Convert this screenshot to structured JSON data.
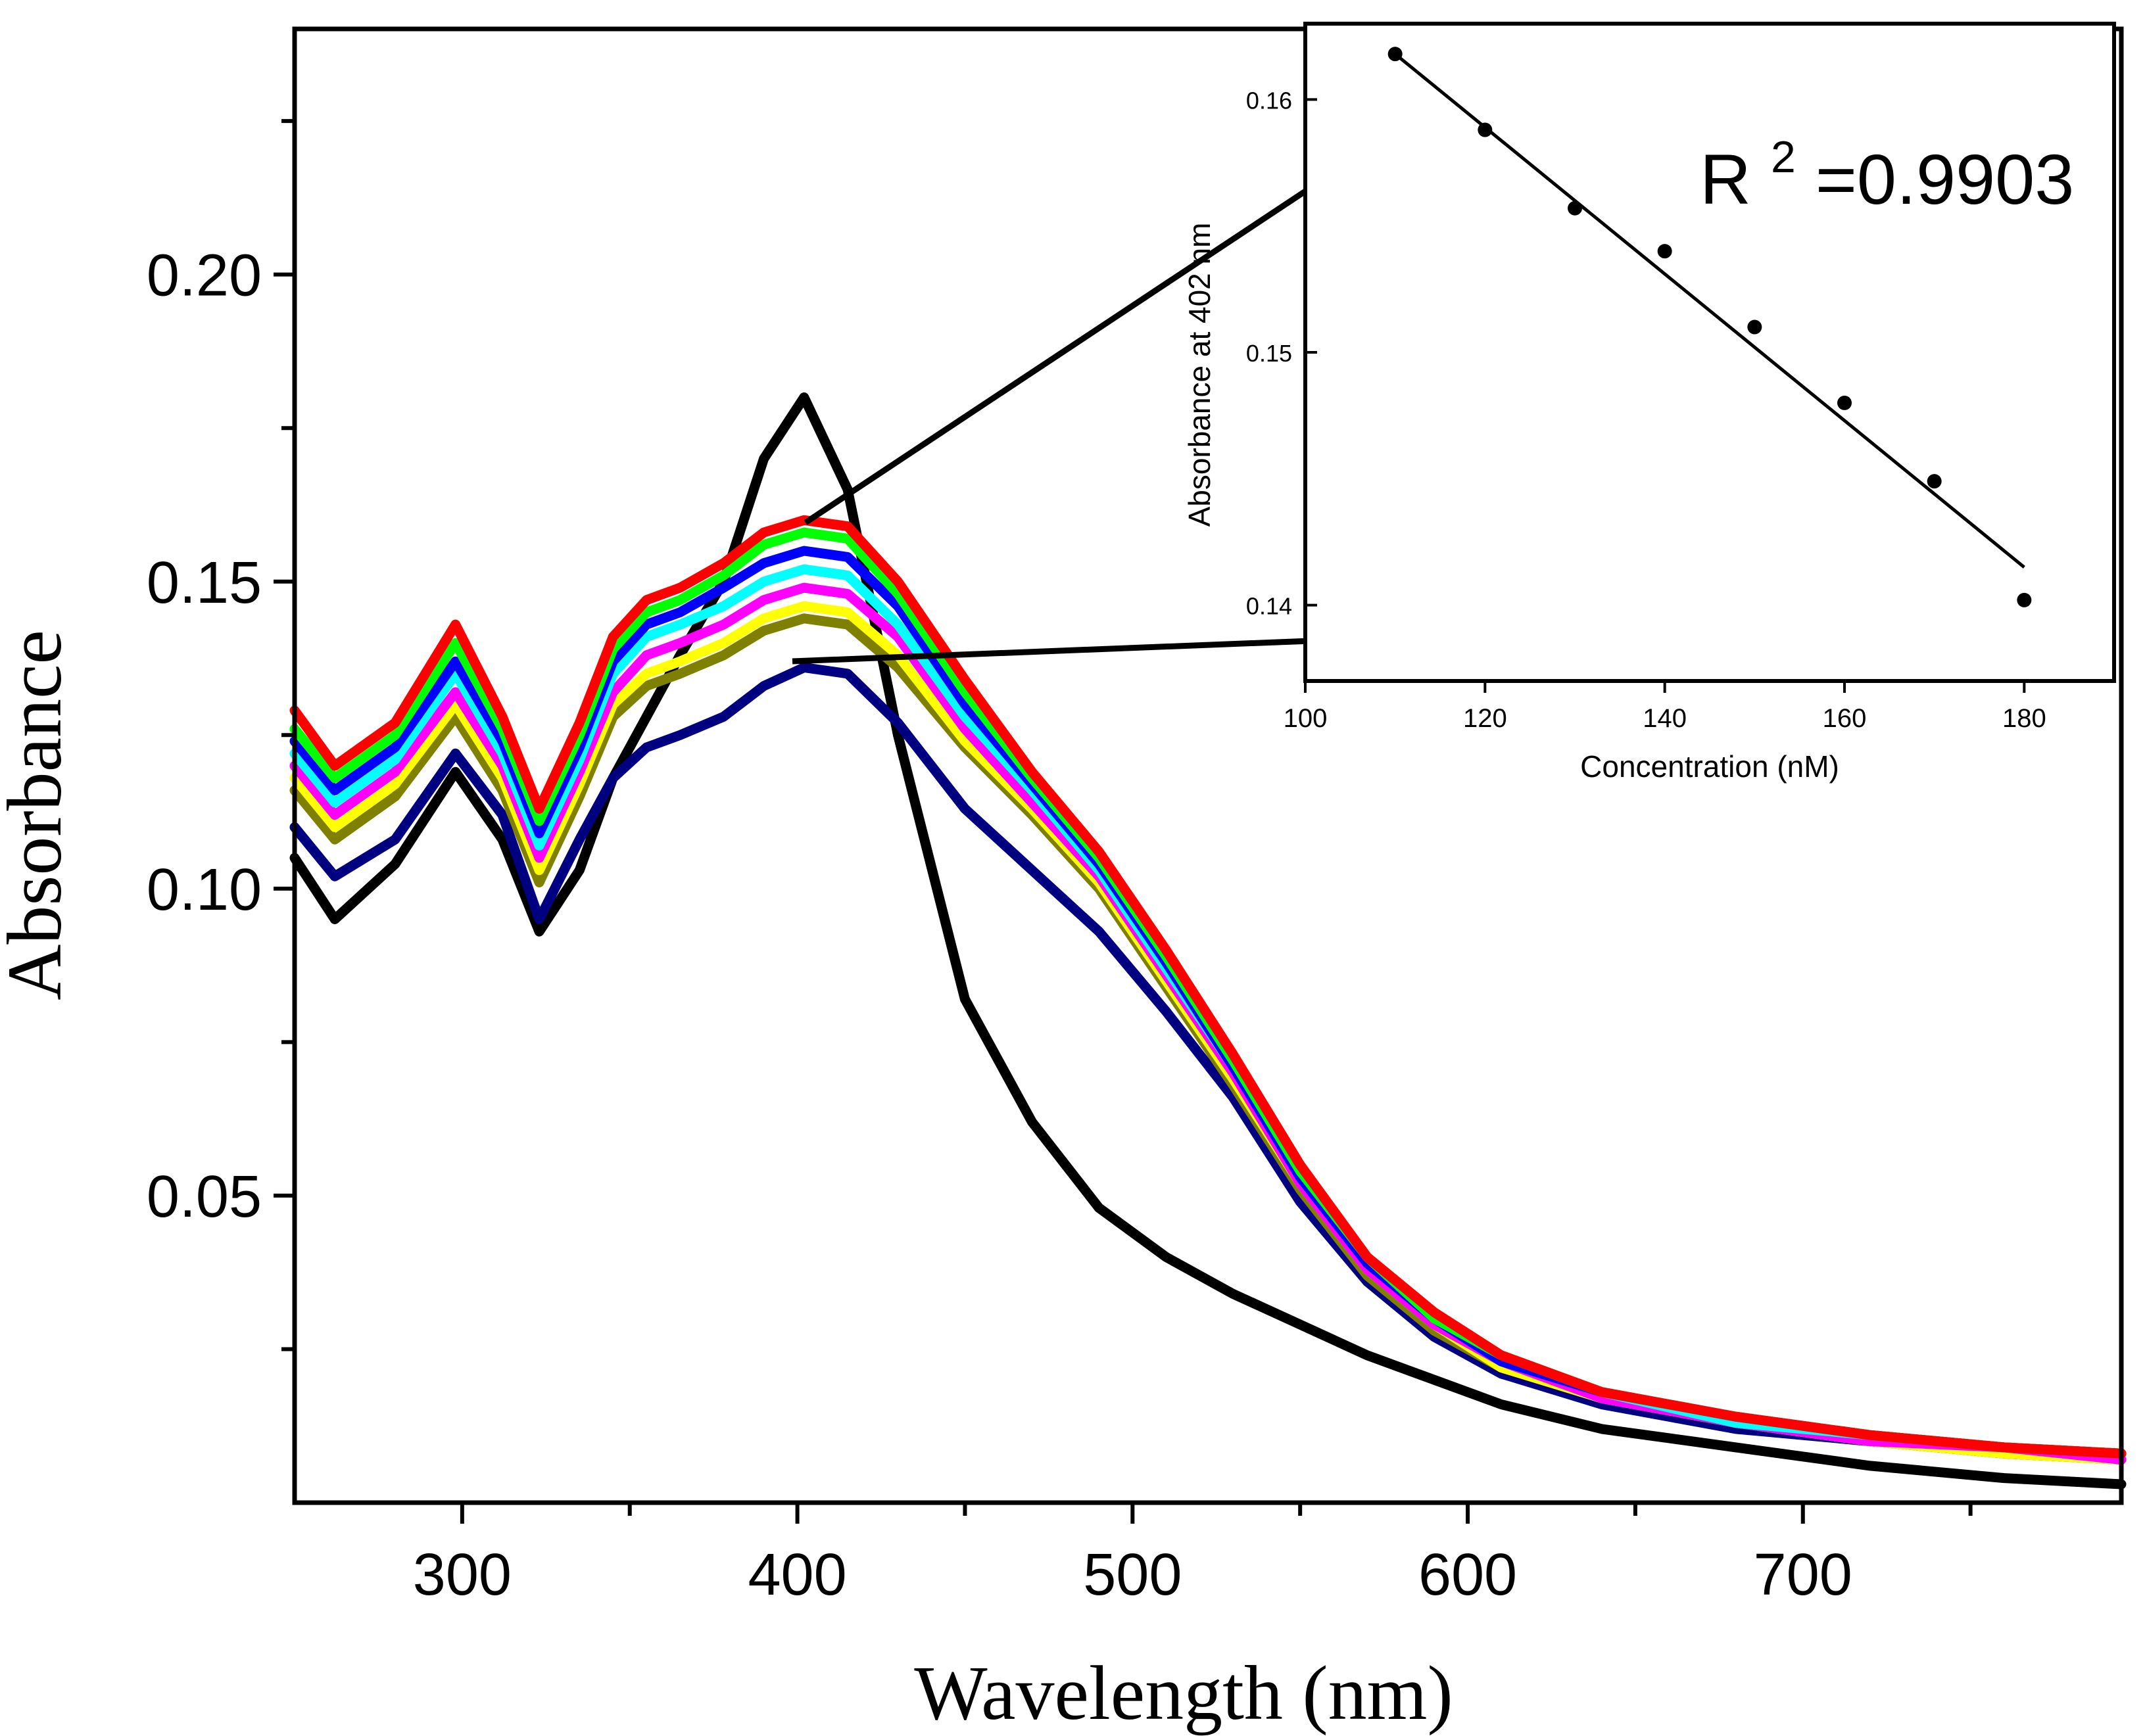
{
  "chart_data": [
    {
      "type": "line",
      "name": "main-absorbance-spectra",
      "xlabel": "Wavelength (nm)",
      "ylabel": "Absorbance",
      "xlim": [
        250,
        795
      ],
      "ylim": [
        0.0,
        0.24
      ],
      "xticks": [
        300,
        400,
        500,
        600,
        700
      ],
      "xtick_labels": [
        "300",
        "400",
        "500",
        "600",
        "700"
      ],
      "yticks": [
        0.05,
        0.1,
        0.15,
        0.2
      ],
      "ytick_labels": [
        "0.05",
        "0.10",
        "0.15",
        "0.20"
      ],
      "grid": false,
      "x": [
        250,
        262,
        280,
        298,
        312,
        323,
        335,
        345,
        355,
        365,
        378,
        390,
        402,
        415,
        430,
        450,
        470,
        490,
        510,
        530,
        550,
        570,
        590,
        610,
        640,
        680,
        720,
        760,
        795
      ],
      "series": [
        {
          "name": "black",
          "color": "#000000",
          "values": [
            0.105,
            0.095,
            0.104,
            0.119,
            0.108,
            0.093,
            0.103,
            0.118,
            0.128,
            0.138,
            0.15,
            0.17,
            0.18,
            0.165,
            0.125,
            0.082,
            0.062,
            0.048,
            0.04,
            0.034,
            0.029,
            0.024,
            0.02,
            0.016,
            0.012,
            0.009,
            0.006,
            0.004,
            0.003
          ]
        },
        {
          "name": "navy",
          "color": "#000080",
          "values": [
            0.11,
            0.102,
            0.108,
            0.122,
            0.112,
            0.095,
            0.108,
            0.118,
            0.123,
            0.125,
            0.128,
            0.133,
            0.136,
            0.135,
            0.127,
            0.113,
            0.103,
            0.093,
            0.08,
            0.066,
            0.049,
            0.036,
            0.027,
            0.021,
            0.016,
            0.012,
            0.01,
            0.008,
            0.007
          ]
        },
        {
          "name": "olive",
          "color": "#808000",
          "values": [
            0.116,
            0.108,
            0.115,
            0.128,
            0.116,
            0.101,
            0.115,
            0.128,
            0.133,
            0.135,
            0.138,
            0.142,
            0.144,
            0.143,
            0.136,
            0.123,
            0.112,
            0.1,
            0.084,
            0.068,
            0.051,
            0.037,
            0.028,
            0.022,
            0.017,
            0.013,
            0.01,
            0.008,
            0.007
          ]
        },
        {
          "name": "yellow",
          "color": "#ffff00",
          "values": [
            0.118,
            0.11,
            0.117,
            0.13,
            0.118,
            0.103,
            0.117,
            0.13,
            0.135,
            0.137,
            0.14,
            0.144,
            0.146,
            0.145,
            0.138,
            0.124,
            0.113,
            0.101,
            0.085,
            0.069,
            0.052,
            0.038,
            0.029,
            0.022,
            0.017,
            0.013,
            0.01,
            0.008,
            0.007
          ]
        },
        {
          "name": "magenta",
          "color": "#ff00ff",
          "values": [
            0.12,
            0.112,
            0.119,
            0.132,
            0.12,
            0.105,
            0.119,
            0.132,
            0.138,
            0.14,
            0.143,
            0.147,
            0.149,
            0.148,
            0.141,
            0.126,
            0.114,
            0.102,
            0.086,
            0.07,
            0.052,
            0.038,
            0.029,
            0.023,
            0.017,
            0.013,
            0.01,
            0.009,
            0.007
          ]
        },
        {
          "name": "cyan",
          "color": "#00ffff",
          "values": [
            0.122,
            0.114,
            0.121,
            0.135,
            0.122,
            0.107,
            0.121,
            0.135,
            0.141,
            0.143,
            0.146,
            0.15,
            0.152,
            0.151,
            0.143,
            0.128,
            0.116,
            0.103,
            0.087,
            0.071,
            0.053,
            0.039,
            0.03,
            0.023,
            0.018,
            0.013,
            0.011,
            0.009,
            0.008
          ]
        },
        {
          "name": "blue",
          "color": "#0000ff",
          "values": [
            0.124,
            0.116,
            0.123,
            0.137,
            0.124,
            0.109,
            0.123,
            0.137,
            0.143,
            0.145,
            0.149,
            0.153,
            0.155,
            0.154,
            0.146,
            0.13,
            0.117,
            0.104,
            0.088,
            0.071,
            0.053,
            0.039,
            0.03,
            0.023,
            0.018,
            0.014,
            0.011,
            0.009,
            0.008
          ]
        },
        {
          "name": "green",
          "color": "#00ff00",
          "values": [
            0.126,
            0.118,
            0.125,
            0.14,
            0.126,
            0.111,
            0.125,
            0.139,
            0.145,
            0.147,
            0.151,
            0.156,
            0.158,
            0.157,
            0.148,
            0.132,
            0.118,
            0.105,
            0.089,
            0.072,
            0.054,
            0.04,
            0.03,
            0.024,
            0.018,
            0.014,
            0.011,
            0.009,
            0.008
          ]
        },
        {
          "name": "red",
          "color": "#ff0000",
          "values": [
            0.129,
            0.12,
            0.127,
            0.143,
            0.128,
            0.113,
            0.127,
            0.141,
            0.147,
            0.149,
            0.153,
            0.158,
            0.16,
            0.159,
            0.15,
            0.134,
            0.119,
            0.106,
            0.09,
            0.073,
            0.055,
            0.04,
            0.031,
            0.024,
            0.018,
            0.014,
            0.011,
            0.009,
            0.008
          ]
        }
      ]
    },
    {
      "type": "scatter",
      "name": "inset-calibration",
      "xlabel": "Concentration (nM)",
      "ylabel": "Absorbance at 402 nm",
      "xlim": [
        100,
        190
      ],
      "ylim": [
        0.137,
        0.163
      ],
      "xticks": [
        100,
        120,
        140,
        160,
        180
      ],
      "xtick_labels": [
        "100",
        "120",
        "140",
        "160",
        "180"
      ],
      "yticks": [
        0.14,
        0.15,
        0.16
      ],
      "ytick_labels": [
        "0.14",
        "0.15",
        "0.16"
      ],
      "x": [
        110,
        120,
        130,
        140,
        150,
        160,
        170,
        180
      ],
      "y": [
        0.1618,
        0.1588,
        0.1557,
        0.154,
        0.151,
        0.148,
        0.1449,
        0.1402
      ],
      "fit_line": {
        "x": [
          110,
          180
        ],
        "y": [
          0.1618,
          0.1415
        ]
      },
      "annotation": {
        "text": "R",
        "superscript": "2",
        "suffix": "=0.9903"
      }
    }
  ]
}
